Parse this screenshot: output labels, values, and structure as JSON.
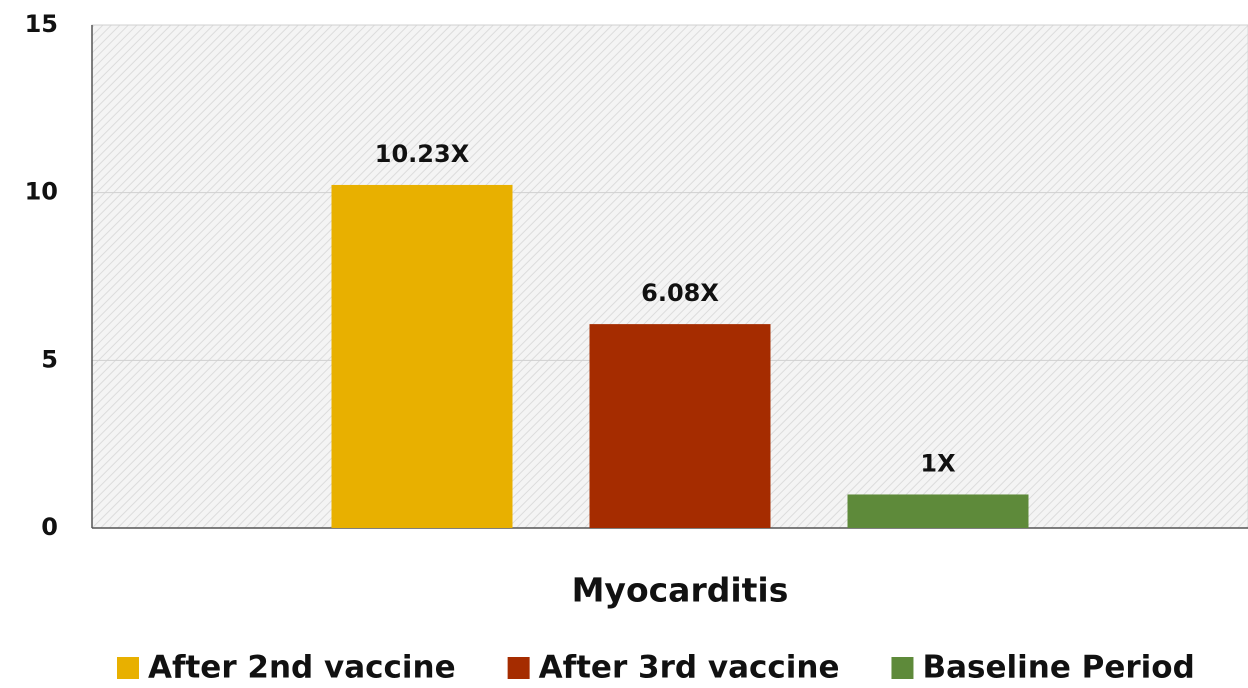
{
  "chart_data": {
    "type": "bar",
    "categories": [
      "Myocarditis"
    ],
    "series": [
      {
        "name": "After 2nd vaccine",
        "color": "#e8b000",
        "values": [
          10.23
        ],
        "value_labels": [
          "10.23X"
        ]
      },
      {
        "name": "After 3rd vaccine",
        "color": "#a52c00",
        "values": [
          6.08
        ],
        "value_labels": [
          "6.08X"
        ]
      },
      {
        "name": "Baseline Period",
        "color": "#5e8a3a",
        "values": [
          1
        ],
        "value_labels": [
          "1X"
        ]
      }
    ],
    "ylim": [
      0,
      15
    ],
    "yticks": [
      0,
      5,
      10,
      15
    ],
    "grid": true,
    "legend": "bottom"
  }
}
